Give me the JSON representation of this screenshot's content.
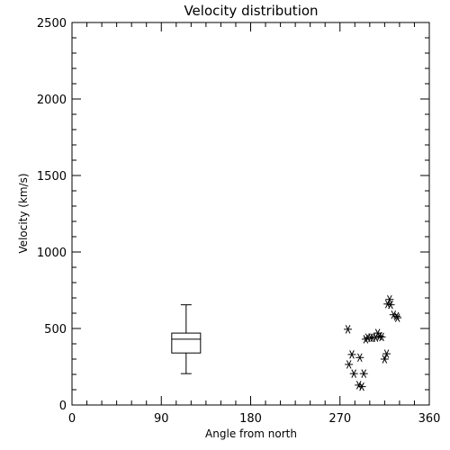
{
  "chart_data": {
    "type": "scatter",
    "title": "Velocity distribution",
    "xlabel": "Angle from north",
    "ylabel": "Velocity (km/s)",
    "xlim": [
      0,
      360
    ],
    "ylim": [
      0,
      2500
    ],
    "xticks": [
      0,
      90,
      180,
      270,
      360
    ],
    "xtick_labels": [
      "0",
      "90",
      "180",
      "270",
      "360"
    ],
    "yticks": [
      0,
      500,
      1000,
      1500,
      2000,
      2500
    ],
    "ytick_labels": [
      "0",
      "500",
      "1000",
      "1500",
      "2000",
      "2500"
    ],
    "grid": false,
    "boxplot": {
      "x": 115,
      "min": 205,
      "q1": 340,
      "median": 430,
      "q3": 470,
      "max": 655
    },
    "points": [
      {
        "x": 278,
        "y": 495
      },
      {
        "x": 279,
        "y": 265
      },
      {
        "x": 282,
        "y": 330
      },
      {
        "x": 284,
        "y": 205
      },
      {
        "x": 289,
        "y": 130
      },
      {
        "x": 290,
        "y": 310
      },
      {
        "x": 292,
        "y": 120
      },
      {
        "x": 294,
        "y": 205
      },
      {
        "x": 296,
        "y": 430
      },
      {
        "x": 298,
        "y": 440
      },
      {
        "x": 301,
        "y": 440
      },
      {
        "x": 303,
        "y": 440
      },
      {
        "x": 306,
        "y": 440
      },
      {
        "x": 308,
        "y": 470
      },
      {
        "x": 310,
        "y": 450
      },
      {
        "x": 312,
        "y": 445
      },
      {
        "x": 315,
        "y": 300
      },
      {
        "x": 317,
        "y": 335
      },
      {
        "x": 318,
        "y": 660
      },
      {
        "x": 320,
        "y": 690
      },
      {
        "x": 321,
        "y": 655
      },
      {
        "x": 324,
        "y": 590
      },
      {
        "x": 327,
        "y": 580
      },
      {
        "x": 328,
        "y": 570
      }
    ]
  }
}
